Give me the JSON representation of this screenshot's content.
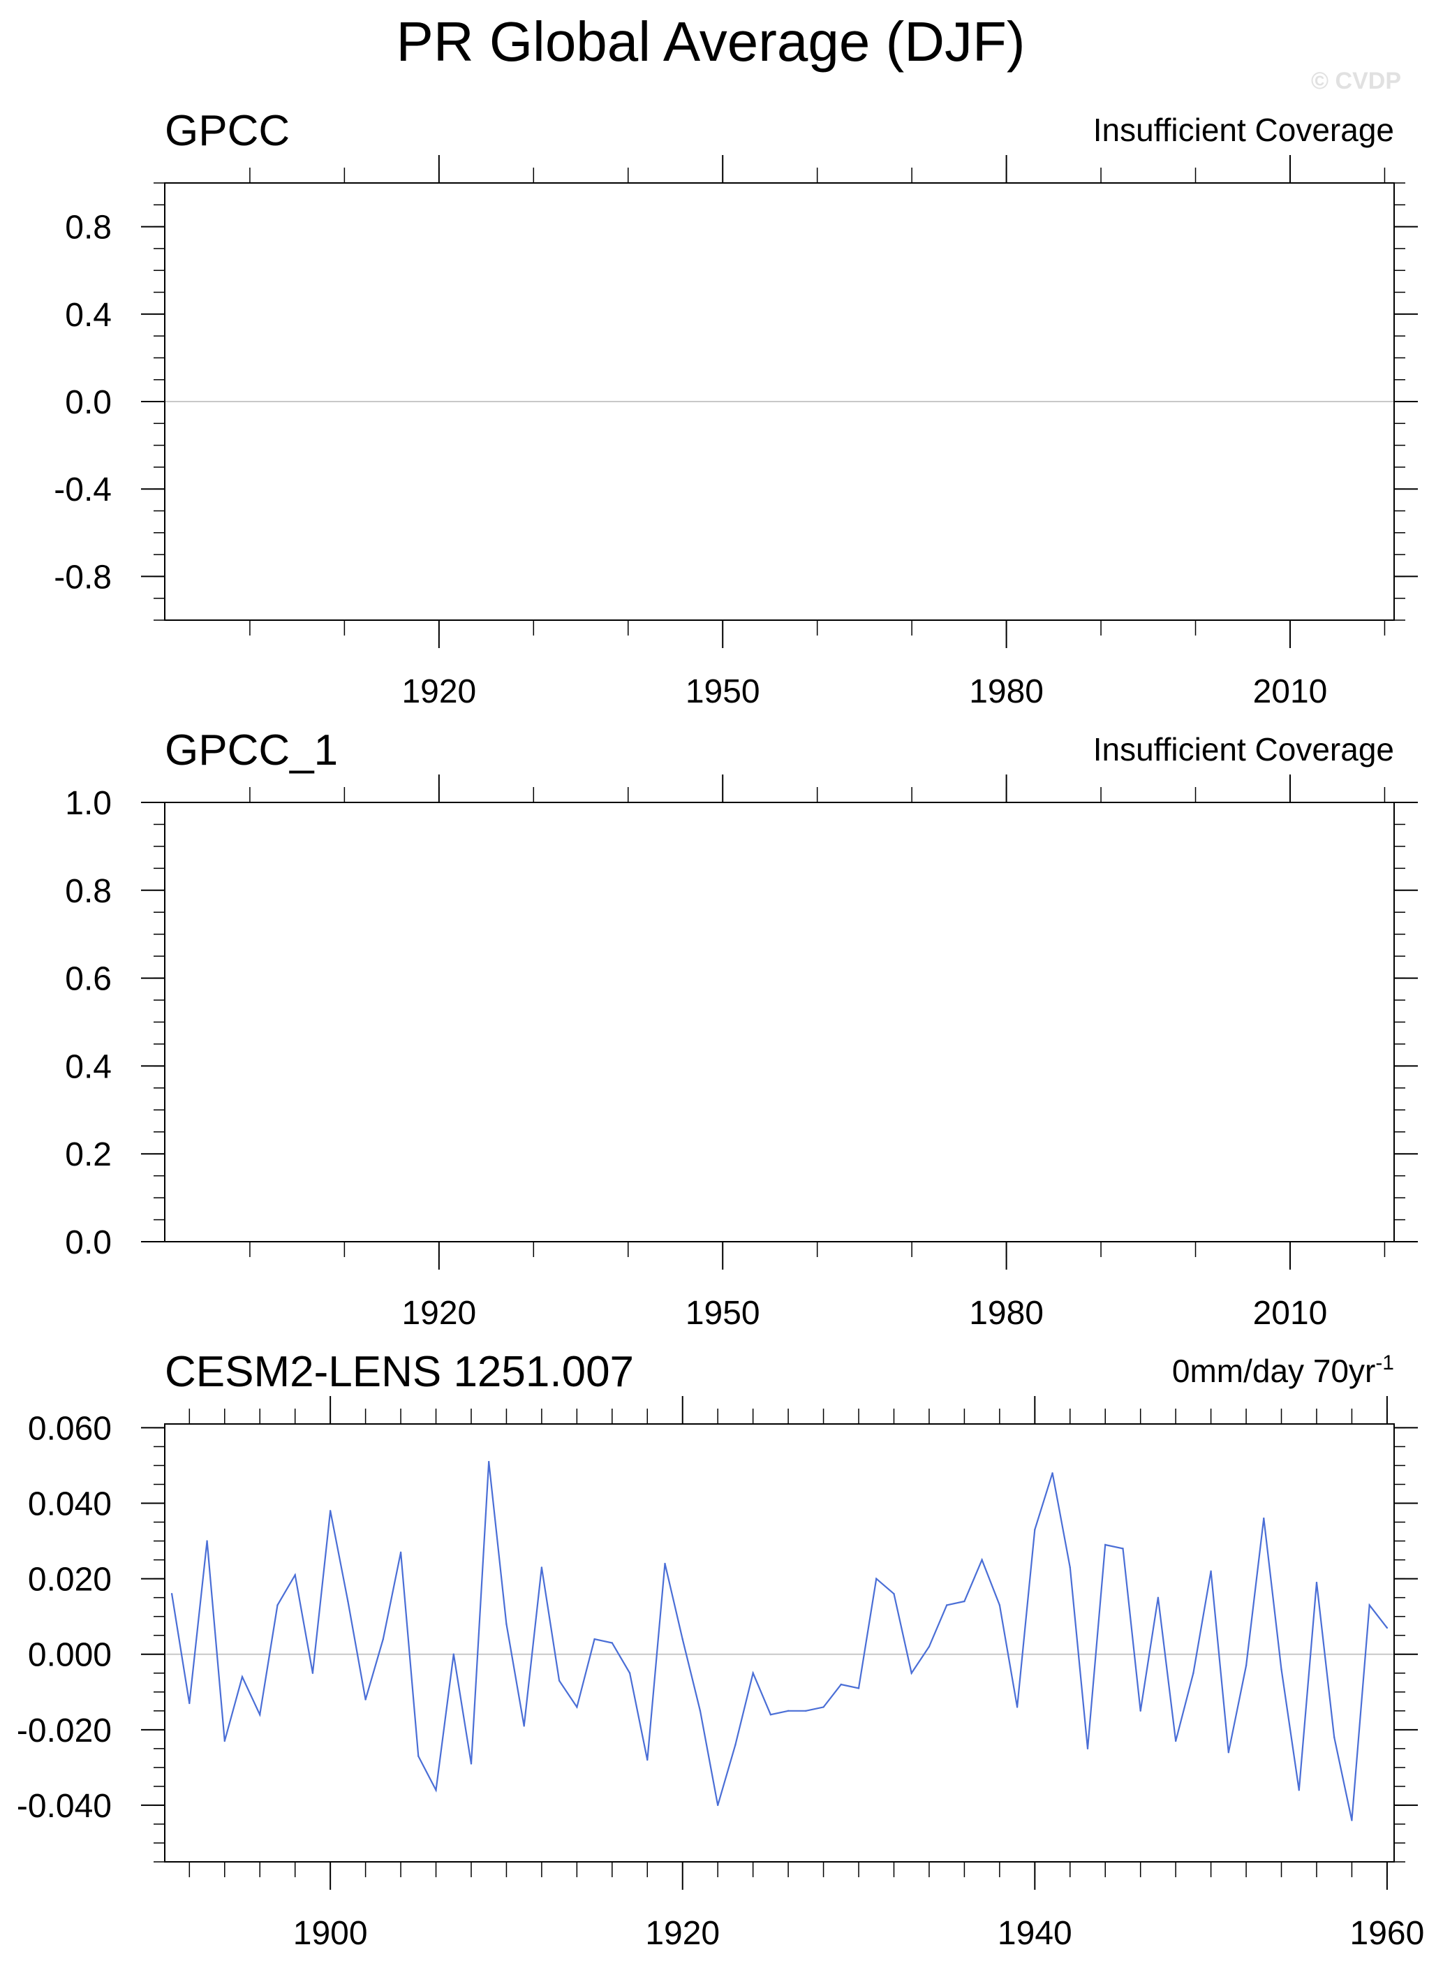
{
  "page": {
    "title": "PR Global Average (DJF)",
    "watermark": "© CVDP"
  },
  "chart_data": [
    {
      "type": "line",
      "title": "GPCC",
      "right_label": "Insufficient Coverage",
      "xlim": [
        1891,
        2021
      ],
      "ylim": [
        -1.0,
        1.0
      ],
      "xticks": [
        1920,
        1950,
        1980,
        2010
      ],
      "xtick_labels": [
        "1920",
        "1950",
        "1980",
        "2010"
      ],
      "xminor_step": 10,
      "yticks": [
        0.8,
        0.4,
        0.0,
        -0.4,
        -0.8
      ],
      "ytick_labels": [
        "0.8",
        "0.4",
        "0.0",
        "-0.4",
        "-0.8"
      ],
      "yminor_step": 0.1,
      "zero_line": true,
      "grid": false,
      "x": [],
      "values": []
    },
    {
      "type": "line",
      "title": "GPCC_1",
      "right_label": "Insufficient Coverage",
      "xlim": [
        1891,
        2021
      ],
      "ylim": [
        0.0,
        1.0
      ],
      "xticks": [
        1920,
        1950,
        1980,
        2010
      ],
      "xtick_labels": [
        "1920",
        "1950",
        "1980",
        "2010"
      ],
      "xminor_step": 10,
      "yticks": [
        1.0,
        0.8,
        0.6,
        0.4,
        0.2,
        0.0
      ],
      "ytick_labels": [
        "1.0",
        "0.8",
        "0.6",
        "0.4",
        "0.2",
        "0.0"
      ],
      "yminor_step": 0.05,
      "zero_line": false,
      "grid": false,
      "x": [],
      "values": []
    },
    {
      "type": "line",
      "title": "CESM2-LENS 1251.007",
      "right_label": "0mm/day 70yr",
      "right_label_sup": "-1",
      "xlim": [
        1890.6,
        1960.4
      ],
      "ylim": [
        -0.055,
        0.061
      ],
      "xticks": [
        1900,
        1920,
        1940,
        1960
      ],
      "xtick_labels": [
        "1900",
        "1920",
        "1940",
        "1960"
      ],
      "xminor_step": 2,
      "yticks": [
        0.06,
        0.04,
        0.02,
        0.0,
        -0.02,
        -0.04
      ],
      "ytick_labels": [
        "0.060",
        "0.040",
        "0.020",
        "0.000",
        "-0.020",
        "-0.040"
      ],
      "yminor_step": 0.005,
      "zero_line": true,
      "grid": false,
      "line_color": "#4a6ed6",
      "x": [
        1891,
        1892,
        1893,
        1894,
        1895,
        1896,
        1897,
        1898,
        1899,
        1900,
        1901,
        1902,
        1903,
        1904,
        1905,
        1906,
        1907,
        1908,
        1909,
        1910,
        1911,
        1912,
        1913,
        1914,
        1915,
        1916,
        1917,
        1918,
        1919,
        1920,
        1921,
        1922,
        1923,
        1924,
        1925,
        1926,
        1927,
        1928,
        1929,
        1930,
        1931,
        1932,
        1933,
        1934,
        1935,
        1936,
        1937,
        1938,
        1939,
        1940,
        1941,
        1942,
        1943,
        1944,
        1945,
        1946,
        1947,
        1948,
        1949,
        1950,
        1951,
        1952,
        1953,
        1954,
        1955,
        1956,
        1957,
        1958,
        1959,
        1960
      ],
      "values": [
        0.016,
        -0.013,
        0.03,
        -0.023,
        -0.006,
        -0.016,
        0.013,
        0.021,
        -0.005,
        0.038,
        0.014,
        -0.012,
        0.004,
        0.027,
        -0.027,
        -0.036,
        0.0,
        -0.029,
        0.051,
        0.008,
        -0.019,
        0.023,
        -0.007,
        -0.014,
        0.004,
        0.003,
        -0.005,
        -0.028,
        0.024,
        0.004,
        -0.015,
        -0.04,
        -0.024,
        -0.005,
        -0.016,
        -0.015,
        -0.015,
        -0.014,
        -0.008,
        -0.009,
        0.02,
        0.016,
        -0.005,
        0.002,
        0.013,
        0.014,
        0.025,
        0.013,
        -0.014,
        0.033,
        0.048,
        0.023,
        -0.025,
        0.029,
        0.028,
        -0.015,
        0.015,
        -0.023,
        -0.005,
        0.022,
        -0.026,
        -0.003,
        0.036,
        -0.004,
        -0.036,
        0.019,
        -0.022,
        -0.044,
        0.013,
        0.007
      ]
    }
  ]
}
